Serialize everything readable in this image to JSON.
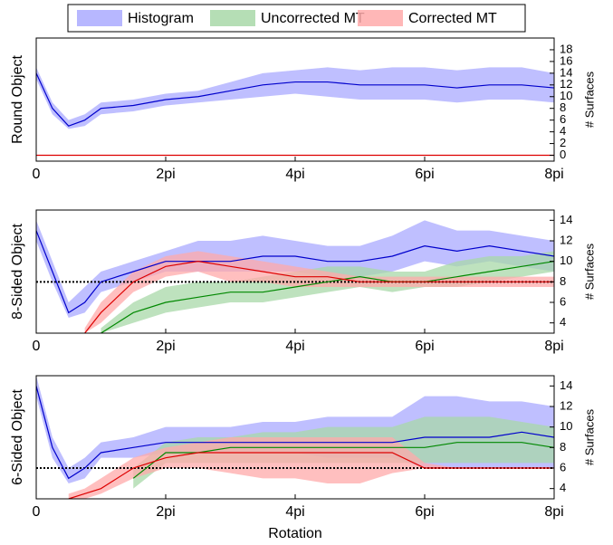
{
  "chart_data": [
    {
      "type": "line",
      "ylabel": "Round Object",
      "y2label": "# Surfaces",
      "x": [
        0,
        0.25,
        0.5,
        0.75,
        1,
        1.5,
        2,
        2.5,
        3,
        3.5,
        4,
        4.5,
        5,
        5.5,
        6,
        6.5,
        7,
        7.5,
        8
      ],
      "xlim": [
        0,
        8
      ],
      "xticks": [
        0,
        {
          "value": 2,
          "label": "2pi"
        },
        {
          "value": 4,
          "label": "4pi"
        },
        {
          "value": 6,
          "label": "6pi"
        },
        {
          "value": 8,
          "label": "8pi"
        }
      ],
      "ylim": [
        -1,
        20
      ],
      "yticks": [
        0,
        2,
        4,
        6,
        8,
        10,
        12,
        14,
        16,
        18
      ],
      "series": [
        {
          "name": "Histogram",
          "color": "#0000cc",
          "band_color": "#aaaaff",
          "values": [
            14,
            8,
            5,
            6,
            8,
            8.5,
            9.5,
            10,
            11,
            12,
            12.5,
            12.5,
            12,
            12,
            12,
            11.5,
            12,
            12,
            11.5
          ],
          "lower": [
            13,
            7,
            4.5,
            5,
            7,
            7.5,
            8.5,
            9,
            9.5,
            10,
            10.5,
            10,
            9.5,
            9.5,
            9.5,
            9,
            9.5,
            9.5,
            9
          ],
          "upper": [
            15,
            9,
            6,
            7,
            9,
            9.5,
            10.5,
            11,
            12.5,
            14,
            14.5,
            15,
            14.5,
            15,
            15,
            14.5,
            15,
            15,
            14
          ]
        },
        {
          "name": "Corrected MT",
          "color": "#dd0000",
          "values": [
            0,
            0,
            0,
            0,
            0,
            0,
            0,
            0,
            0,
            0,
            0,
            0,
            0,
            0,
            0,
            0,
            0,
            0,
            0
          ]
        }
      ]
    },
    {
      "type": "line",
      "ylabel": "8-Sided Object",
      "y2label": "# Surfaces",
      "reference_line": 8,
      "x": [
        0,
        0.25,
        0.5,
        0.75,
        1,
        1.5,
        2,
        2.5,
        3,
        3.5,
        4,
        4.5,
        5,
        5.5,
        6,
        6.5,
        7,
        7.5,
        8
      ],
      "xlim": [
        0,
        8
      ],
      "xticks": [
        0,
        {
          "value": 2,
          "label": "2pi"
        },
        {
          "value": 4,
          "label": "4pi"
        },
        {
          "value": 6,
          "label": "6pi"
        },
        {
          "value": 8,
          "label": "8pi"
        }
      ],
      "ylim": [
        3,
        15
      ],
      "yticks": [
        4,
        6,
        8,
        10,
        12,
        14
      ],
      "series": [
        {
          "name": "Histogram",
          "color": "#0000cc",
          "band_color": "#aaaaff",
          "values": [
            13,
            9,
            5,
            6,
            8,
            9,
            10,
            10,
            10,
            10.5,
            10.5,
            10,
            10,
            10.5,
            11.5,
            11,
            11.5,
            11,
            10.5
          ],
          "lower": [
            12,
            8,
            4.5,
            5,
            7,
            8,
            9,
            9,
            9,
            9,
            9,
            8.5,
            8.5,
            9,
            10,
            9.5,
            10,
            9.5,
            9
          ],
          "upper": [
            14,
            10,
            6,
            7.5,
            9,
            10,
            11,
            12,
            12,
            12.5,
            12,
            11.5,
            11.5,
            12.5,
            14,
            13,
            13,
            12.5,
            12
          ]
        },
        {
          "name": "Uncorrected MT",
          "color": "#008800",
          "band_color": "#a8d8a8",
          "values": [
            null,
            null,
            null,
            null,
            3,
            5,
            6,
            6.5,
            7,
            7,
            7.5,
            8,
            8.5,
            8,
            8,
            8.5,
            9,
            9.5,
            10
          ],
          "lower": [
            null,
            null,
            null,
            null,
            3,
            4,
            5,
            5.5,
            6,
            6,
            6.5,
            7,
            7.5,
            7,
            7.5,
            7.5,
            8,
            8.5,
            9
          ],
          "upper": [
            null,
            null,
            null,
            null,
            3.5,
            6,
            7.5,
            8,
            8,
            8.5,
            9,
            9.5,
            9.5,
            9,
            9,
            10,
            10.5,
            10.5,
            11
          ]
        },
        {
          "name": "Corrected MT",
          "color": "#dd0000",
          "band_color": "#ffaaaa",
          "values": [
            null,
            null,
            null,
            3,
            5,
            8,
            9.5,
            10,
            9.5,
            9,
            8.5,
            8.5,
            8,
            8,
            8,
            8,
            8,
            8,
            8
          ],
          "lower": [
            null,
            null,
            null,
            3,
            4,
            7,
            8.5,
            9,
            8,
            8,
            7.5,
            7.5,
            7.5,
            7.5,
            7.5,
            7.5,
            7.5,
            7.5,
            7.5
          ],
          "upper": [
            null,
            null,
            null,
            3.5,
            6,
            9,
            10.5,
            11,
            10.5,
            10,
            9.5,
            9,
            8.5,
            8.5,
            8.5,
            8.5,
            8.5,
            8.5,
            8.5
          ]
        }
      ]
    },
    {
      "type": "line",
      "ylabel": "6-Sided Object",
      "y2label": "# Surfaces",
      "xlabel": "Rotation",
      "reference_line": 6,
      "x": [
        0,
        0.25,
        0.5,
        0.75,
        1,
        1.5,
        2,
        2.5,
        3,
        3.5,
        4,
        4.5,
        5,
        5.5,
        6,
        6.5,
        7,
        7.5,
        8
      ],
      "xlim": [
        0,
        8
      ],
      "xticks": [
        0,
        {
          "value": 2,
          "label": "2pi"
        },
        {
          "value": 4,
          "label": "4pi"
        },
        {
          "value": 6,
          "label": "6pi"
        },
        {
          "value": 8,
          "label": "8pi"
        }
      ],
      "ylim": [
        3,
        15
      ],
      "yticks": [
        4,
        6,
        8,
        10,
        12,
        14
      ],
      "series": [
        {
          "name": "Histogram",
          "color": "#0000cc",
          "band_color": "#aaaaff",
          "values": [
            14,
            8,
            5,
            6,
            7.5,
            8,
            8.5,
            8.5,
            8.5,
            8.5,
            8.5,
            8.5,
            8.5,
            8.5,
            9,
            9,
            9,
            9.5,
            9
          ],
          "lower": [
            13,
            7,
            4.5,
            5,
            7,
            7,
            7.5,
            7.5,
            7.5,
            7.5,
            7.5,
            7,
            7,
            7,
            6,
            6,
            6,
            6,
            6
          ],
          "upper": [
            15,
            9,
            6,
            7,
            8.5,
            9,
            10,
            10,
            10,
            10.5,
            10.5,
            11,
            11,
            11,
            13,
            13,
            12.5,
            12.5,
            12
          ]
        },
        {
          "name": "Uncorrected MT",
          "color": "#008800",
          "band_color": "#a8d8a8",
          "values": [
            null,
            null,
            null,
            null,
            null,
            5,
            7.5,
            7.5,
            8,
            8,
            8,
            8,
            8,
            8,
            8,
            8.5,
            8.5,
            8.5,
            8
          ],
          "lower": [
            null,
            null,
            null,
            null,
            null,
            4,
            6.5,
            6.5,
            6.5,
            6.5,
            6.5,
            6.5,
            6.5,
            6.5,
            6.5,
            6.5,
            6.5,
            6.5,
            6.5
          ],
          "upper": [
            null,
            null,
            null,
            null,
            null,
            6,
            8.5,
            9,
            9,
            9.5,
            9.5,
            10,
            10,
            10,
            11,
            11,
            11,
            10.5,
            10
          ]
        },
        {
          "name": "Corrected MT",
          "color": "#dd0000",
          "band_color": "#ffaaaa",
          "values": [
            null,
            null,
            3,
            3.5,
            4,
            6,
            7,
            7.5,
            7.5,
            7.5,
            7.5,
            7.5,
            7.5,
            7.5,
            6,
            6,
            6,
            6,
            6
          ],
          "lower": [
            null,
            null,
            3,
            3,
            3.5,
            5,
            6,
            6,
            5.5,
            5,
            5,
            4.5,
            4.5,
            5.5,
            6,
            6,
            6,
            6,
            6
          ],
          "upper": [
            null,
            null,
            3.5,
            4,
            5,
            7,
            8,
            8.5,
            9,
            9,
            9,
            9,
            9,
            9,
            6.5,
            6,
            6,
            6,
            6
          ]
        }
      ]
    }
  ]
}
